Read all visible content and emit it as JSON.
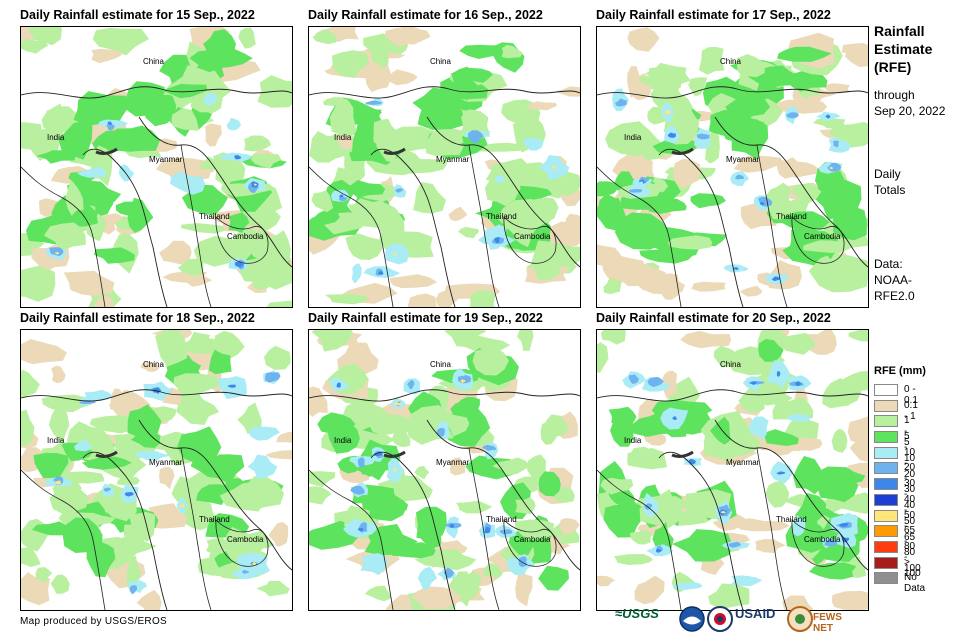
{
  "panels": [
    {
      "title": "Daily Rainfall estimate for 15 Sep., 2022"
    },
    {
      "title": "Daily Rainfall estimate for 16 Sep., 2022"
    },
    {
      "title": "Daily Rainfall estimate for 17 Sep., 2022"
    },
    {
      "title": "Daily Rainfall estimate for 18 Sep., 2022"
    },
    {
      "title": "Daily Rainfall estimate for 19 Sep., 2022"
    },
    {
      "title": "Daily Rainfall estimate for 20 Sep., 2022"
    }
  ],
  "places": {
    "china": "China",
    "india": "India",
    "myanmar": "Myanmar",
    "thailand": "Thailand",
    "cambodia": "Cambodia"
  },
  "side": {
    "title_line1": "Rainfall",
    "title_line2": "Estimate",
    "title_line3": "(RFE)",
    "through": "through",
    "date": "Sep 20, 2022",
    "totals_line1": "Daily",
    "totals_line2": "Totals",
    "data_line1": "Data:",
    "data_line2": "NOAA-",
    "data_line3": "RFE2.0"
  },
  "legend": {
    "title": "RFE (mm)",
    "items": [
      {
        "label": "0 - 0.1",
        "color": "#ffffff"
      },
      {
        "label": "0.1 - 1",
        "color": "#ecd9b8"
      },
      {
        "label": "1 - 5",
        "color": "#b9f0a0"
      },
      {
        "label": "5 - 10",
        "color": "#5ee35e"
      },
      {
        "label": "10 - 20",
        "color": "#a9ecf6"
      },
      {
        "label": "20 - 30",
        "color": "#6fb2f0"
      },
      {
        "label": "30 - 40",
        "color": "#3d86ea"
      },
      {
        "label": "40 - 50",
        "color": "#1d3fd6"
      },
      {
        "label": "50 - 65",
        "color": "#ffe57a"
      },
      {
        "label": "65 - 80",
        "color": "#ff9a00"
      },
      {
        "label": "80 - 100",
        "color": "#ff3b10"
      },
      {
        "label": "> 100",
        "color": "#a81c1c"
      },
      {
        "label": "No Data",
        "color": "#8f8f8f"
      }
    ]
  },
  "credit": "Map produced by USGS/EROS",
  "logos": {
    "usgs": "≈USGS",
    "noaa": "NOAA",
    "usaid": "USAID",
    "fewsnet": "FEWS NET"
  }
}
